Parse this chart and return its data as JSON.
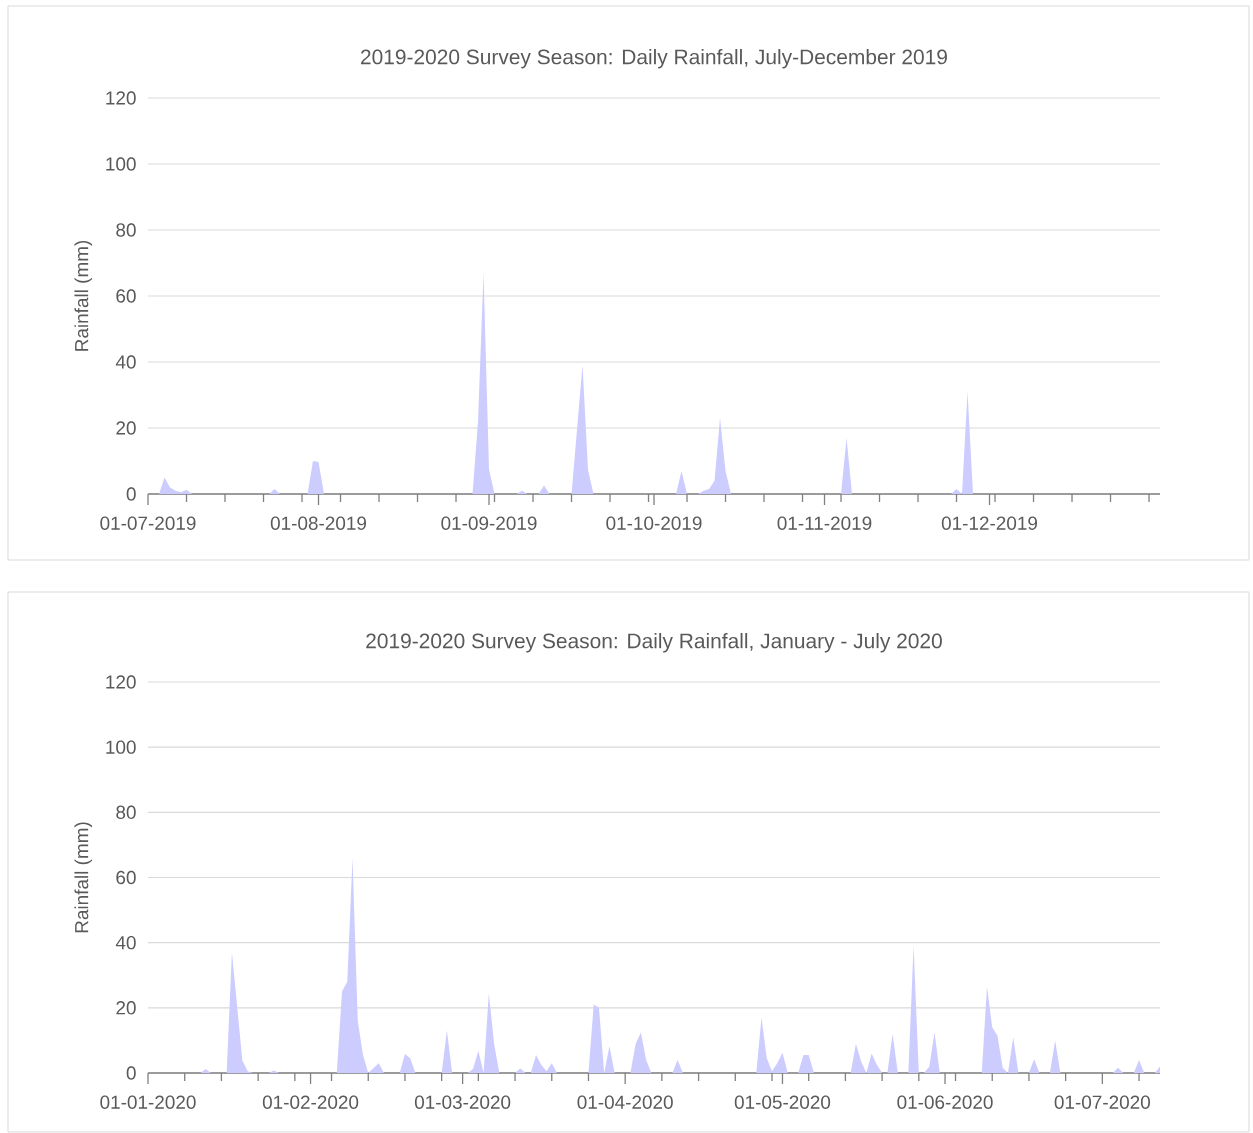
{
  "chart_data": [
    {
      "type": "area",
      "title": "2019-2020 Survey Season: Daily Rainfall, July-December 2019",
      "ylabel": "Rainfall (mm)",
      "color": "#ccccff",
      "grid": "y",
      "xlim": [
        "2019-07-01",
        "2020-01-01"
      ],
      "ylim": [
        0,
        120
      ],
      "yticks": [
        0,
        20,
        40,
        60,
        80,
        100,
        120
      ],
      "xticks": [
        {
          "value": "2019-07-01",
          "label": "01-07-2019"
        },
        {
          "value": "2019-08-01",
          "label": "01-08-2019"
        },
        {
          "value": "2019-09-01",
          "label": "01-09-2019"
        },
        {
          "value": "2019-10-01",
          "label": "01-10-2019"
        },
        {
          "value": "2019-11-01",
          "label": "01-11-2019"
        },
        {
          "value": "2019-12-01",
          "label": "01-12-2019"
        },
        {
          "value": "2019-07-08",
          "label": null
        },
        {
          "value": "2019-07-15",
          "label": null
        },
        {
          "value": "2019-07-22",
          "label": null
        },
        {
          "value": "2019-07-29",
          "label": null
        },
        {
          "value": "2019-08-05",
          "label": null
        },
        {
          "value": "2019-08-12",
          "label": null
        },
        {
          "value": "2019-08-19",
          "label": null
        },
        {
          "value": "2019-08-26",
          "label": null
        },
        {
          "value": "2019-09-02",
          "label": null
        },
        {
          "value": "2019-09-09",
          "label": null
        },
        {
          "value": "2019-09-16",
          "label": null
        },
        {
          "value": "2019-09-23",
          "label": null
        },
        {
          "value": "2019-09-30",
          "label": null
        },
        {
          "value": "2019-10-07",
          "label": null
        },
        {
          "value": "2019-10-14",
          "label": null
        },
        {
          "value": "2019-10-21",
          "label": null
        },
        {
          "value": "2019-10-28",
          "label": null
        },
        {
          "value": "2019-11-04",
          "label": null
        },
        {
          "value": "2019-11-11",
          "label": null
        },
        {
          "value": "2019-11-18",
          "label": null
        },
        {
          "value": "2019-11-25",
          "label": null
        },
        {
          "value": "2019-12-02",
          "label": null
        },
        {
          "value": "2019-12-09",
          "label": null
        },
        {
          "value": "2019-12-16",
          "label": null
        },
        {
          "value": "2019-12-23",
          "label": null
        },
        {
          "value": "2019-12-30",
          "label": null
        }
      ],
      "x": [
        "2019-07-01",
        "2019-07-03",
        "2019-07-04",
        "2019-07-05",
        "2019-07-06",
        "2019-07-07",
        "2019-07-08",
        "2019-07-09",
        "2019-07-23",
        "2019-07-24",
        "2019-07-25",
        "2019-07-30",
        "2019-07-31",
        "2019-08-01",
        "2019-08-02",
        "2019-08-29",
        "2019-08-30",
        "2019-08-31",
        "2019-09-01",
        "2019-09-02",
        "2019-09-06",
        "2019-09-07",
        "2019-09-08",
        "2019-09-10",
        "2019-09-11",
        "2019-09-12",
        "2019-09-16",
        "2019-09-18",
        "2019-09-19",
        "2019-09-20",
        "2019-10-05",
        "2019-10-06",
        "2019-10-07",
        "2019-10-09",
        "2019-10-10",
        "2019-10-11",
        "2019-10-12",
        "2019-10-13",
        "2019-10-14",
        "2019-10-15",
        "2019-11-04",
        "2019-11-05",
        "2019-11-06",
        "2019-11-24",
        "2019-11-25",
        "2019-11-26",
        "2019-11-27",
        "2019-11-28",
        "2019-12-31"
      ],
      "values": [
        0,
        0,
        5,
        2,
        1,
        0.5,
        1.3,
        0,
        0,
        1.5,
        0,
        0,
        10,
        9.7,
        0,
        0,
        22,
        67,
        7.5,
        0,
        0,
        1,
        0,
        0,
        2.6,
        0,
        0,
        39,
        7.3,
        0,
        0,
        7,
        0,
        0,
        1,
        1.5,
        4,
        23,
        7,
        0,
        0,
        17,
        0,
        0,
        1.5,
        0,
        31,
        0,
        0
      ]
    },
    {
      "type": "area",
      "title": "2019-2020 Survey Season: Daily Rainfall, January - July 2020",
      "ylabel": "Rainfall (mm)",
      "color": "#ccccff",
      "grid": "y",
      "xlim": [
        "2020-01-01",
        "2020-07-12"
      ],
      "ylim": [
        0,
        120
      ],
      "yticks": [
        0,
        20,
        40,
        60,
        80,
        100,
        120
      ],
      "xticks": [
        {
          "value": "2020-01-01",
          "label": "01-01-2020"
        },
        {
          "value": "2020-02-01",
          "label": "01-02-2020"
        },
        {
          "value": "2020-03-01",
          "label": "01-03-2020"
        },
        {
          "value": "2020-04-01",
          "label": "01-04-2020"
        },
        {
          "value": "2020-05-01",
          "label": "01-05-2020"
        },
        {
          "value": "2020-06-01",
          "label": "01-06-2020"
        },
        {
          "value": "2020-07-01",
          "label": "01-07-2020"
        },
        {
          "value": "2020-01-08",
          "label": null
        },
        {
          "value": "2020-01-15",
          "label": null
        },
        {
          "value": "2020-01-22",
          "label": null
        },
        {
          "value": "2020-01-29",
          "label": null
        },
        {
          "value": "2020-02-05",
          "label": null
        },
        {
          "value": "2020-02-12",
          "label": null
        },
        {
          "value": "2020-02-19",
          "label": null
        },
        {
          "value": "2020-02-26",
          "label": null
        },
        {
          "value": "2020-03-04",
          "label": null
        },
        {
          "value": "2020-03-11",
          "label": null
        },
        {
          "value": "2020-03-18",
          "label": null
        },
        {
          "value": "2020-03-25",
          "label": null
        },
        {
          "value": "2020-04-08",
          "label": null
        },
        {
          "value": "2020-04-15",
          "label": null
        },
        {
          "value": "2020-04-22",
          "label": null
        },
        {
          "value": "2020-04-29",
          "label": null
        },
        {
          "value": "2020-05-06",
          "label": null
        },
        {
          "value": "2020-05-13",
          "label": null
        },
        {
          "value": "2020-05-20",
          "label": null
        },
        {
          "value": "2020-05-27",
          "label": null
        },
        {
          "value": "2020-06-03",
          "label": null
        },
        {
          "value": "2020-06-10",
          "label": null
        },
        {
          "value": "2020-06-17",
          "label": null
        },
        {
          "value": "2020-06-24",
          "label": null
        },
        {
          "value": "2020-07-08",
          "label": null
        }
      ],
      "x": [
        "2020-01-01",
        "2020-01-11",
        "2020-01-12",
        "2020-01-13",
        "2020-01-16",
        "2020-01-17",
        "2020-01-19",
        "2020-01-20",
        "2020-01-21",
        "2020-01-24",
        "2020-01-25",
        "2020-01-26",
        "2020-02-06",
        "2020-02-07",
        "2020-02-08",
        "2020-02-09",
        "2020-02-10",
        "2020-02-11",
        "2020-02-12",
        "2020-02-14",
        "2020-02-15",
        "2020-02-18",
        "2020-02-19",
        "2020-02-20",
        "2020-02-21",
        "2020-02-26",
        "2020-02-27",
        "2020-02-28",
        "2020-03-02",
        "2020-03-03",
        "2020-03-04",
        "2020-03-05",
        "2020-03-06",
        "2020-03-07",
        "2020-03-08",
        "2020-03-11",
        "2020-03-12",
        "2020-03-13",
        "2020-03-14",
        "2020-03-15",
        "2020-03-16",
        "2020-03-17",
        "2020-03-18",
        "2020-03-19",
        "2020-03-25",
        "2020-03-26",
        "2020-03-27",
        "2020-03-28",
        "2020-03-29",
        "2020-03-30",
        "2020-04-02",
        "2020-04-03",
        "2020-04-04",
        "2020-04-05",
        "2020-04-06",
        "2020-04-10",
        "2020-04-11",
        "2020-04-12",
        "2020-04-26",
        "2020-04-27",
        "2020-04-28",
        "2020-04-29",
        "2020-04-30",
        "2020-05-01",
        "2020-05-02",
        "2020-05-04",
        "2020-05-05",
        "2020-05-06",
        "2020-05-07",
        "2020-05-14",
        "2020-05-15",
        "2020-05-16",
        "2020-05-17",
        "2020-05-18",
        "2020-05-19",
        "2020-05-20",
        "2020-05-21",
        "2020-05-22",
        "2020-05-23",
        "2020-05-25",
        "2020-05-26",
        "2020-05-27",
        "2020-05-28",
        "2020-05-29",
        "2020-05-30",
        "2020-05-31",
        "2020-06-08",
        "2020-06-09",
        "2020-06-10",
        "2020-06-11",
        "2020-06-12",
        "2020-06-13",
        "2020-06-14",
        "2020-06-15",
        "2020-06-17",
        "2020-06-18",
        "2020-06-19",
        "2020-06-21",
        "2020-06-22",
        "2020-06-23",
        "2020-07-03",
        "2020-07-04",
        "2020-07-05",
        "2020-07-07",
        "2020-07-08",
        "2020-07-09",
        "2020-07-11",
        "2020-07-12"
      ],
      "values": [
        0,
        0,
        1.2,
        0,
        0,
        37,
        3.8,
        0.5,
        0,
        0,
        0.8,
        0,
        0,
        25,
        28,
        66,
        16,
        5.5,
        0,
        3,
        0,
        0,
        5.8,
        4.5,
        0,
        0,
        13,
        0,
        0,
        1.3,
        6.8,
        0,
        24.5,
        9,
        0,
        0,
        1.4,
        0,
        0,
        5.5,
        2.5,
        0.5,
        3,
        0,
        0,
        21,
        20,
        0,
        8.3,
        0,
        0,
        9,
        12.4,
        4,
        0,
        0,
        4,
        0,
        0,
        17,
        4.5,
        0.5,
        3,
        6.2,
        0,
        0,
        5.5,
        5.5,
        0,
        0,
        9,
        3.5,
        0,
        6,
        2.5,
        0,
        0,
        12,
        0,
        0,
        39,
        0,
        0,
        2,
        12.4,
        0,
        0,
        26.5,
        14,
        11.4,
        1.6,
        0,
        11,
        0,
        0,
        4.2,
        0,
        0,
        10,
        0,
        0,
        1.6,
        0,
        0,
        4,
        0,
        0,
        2
      ]
    }
  ]
}
